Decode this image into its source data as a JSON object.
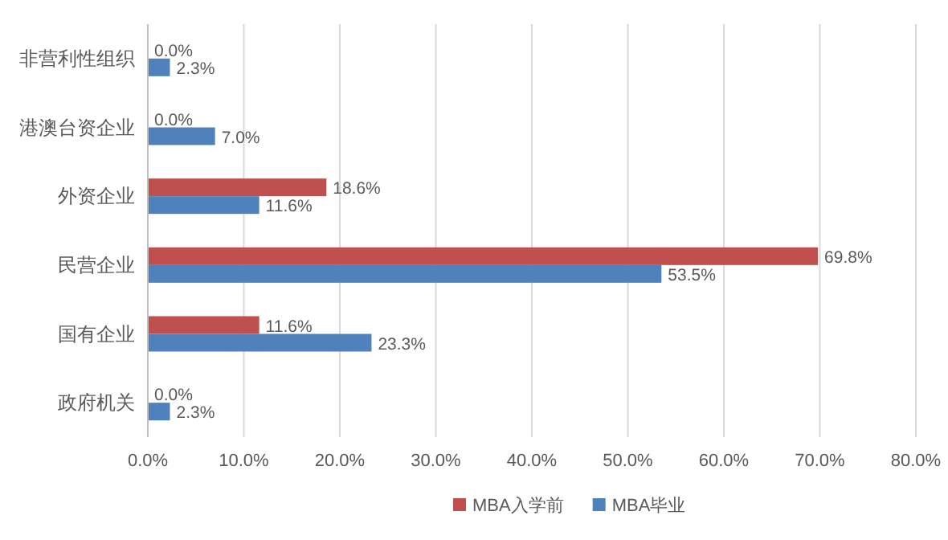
{
  "chart_data": {
    "type": "bar",
    "orientation": "horizontal",
    "categories": [
      "非营利性组织",
      "港澳台资企业",
      "外资企业",
      "民营企业",
      "国有企业",
      "政府机关"
    ],
    "series": [
      {
        "name": "MBA入学前",
        "color": "#c0504d",
        "values": [
          0.0,
          0.0,
          18.6,
          69.8,
          11.6,
          0.0
        ],
        "value_labels": [
          "0.0%",
          "0.0%",
          "18.6%",
          "69.8%",
          "11.6%",
          "0.0%"
        ]
      },
      {
        "name": "MBA毕业",
        "color": "#4f81bd",
        "values": [
          2.3,
          7.0,
          11.6,
          53.5,
          23.3,
          2.3
        ],
        "value_labels": [
          "2.3%",
          "7.0%",
          "11.6%",
          "53.5%",
          "23.3%",
          "2.3%"
        ]
      }
    ],
    "xlim": [
      0,
      80
    ],
    "xticks": [
      {
        "value": 0,
        "label": "0.0%"
      },
      {
        "value": 10,
        "label": "10.0%"
      },
      {
        "value": 20,
        "label": "20.0%"
      },
      {
        "value": 30,
        "label": "30.0%"
      },
      {
        "value": 40,
        "label": "40.0%"
      },
      {
        "value": 50,
        "label": "50.0%"
      },
      {
        "value": 60,
        "label": "60.0%"
      },
      {
        "value": 70,
        "label": "70.0%"
      },
      {
        "value": 80,
        "label": "80.0%"
      }
    ],
    "grid": "x",
    "legend": "bottom"
  }
}
